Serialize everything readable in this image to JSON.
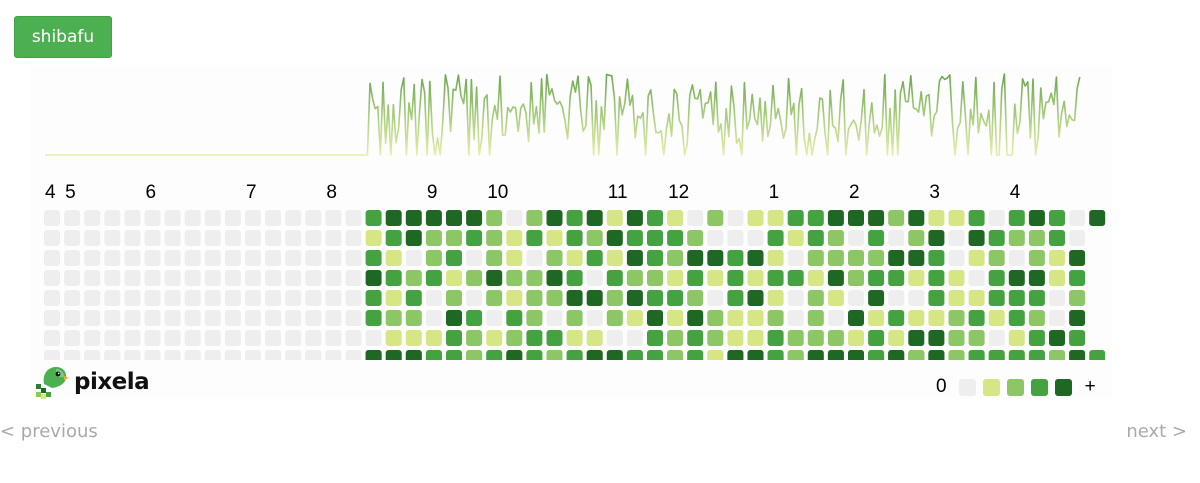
{
  "graph_button": {
    "label": "shibafu"
  },
  "months": [
    {
      "label": "4",
      "week": 0
    },
    {
      "label": "5",
      "week": 1
    },
    {
      "label": "6",
      "week": 5
    },
    {
      "label": "7",
      "week": 10
    },
    {
      "label": "8",
      "week": 14
    },
    {
      "label": "9",
      "week": 19
    },
    {
      "label": "10",
      "week": 22
    },
    {
      "label": "11",
      "week": 28
    },
    {
      "label": "12",
      "week": 31
    },
    {
      "label": "1",
      "week": 36
    },
    {
      "label": "2",
      "week": 40
    },
    {
      "label": "3",
      "week": 44
    },
    {
      "label": "4",
      "week": 48
    }
  ],
  "heatmap": {
    "weeks": 53,
    "days": 7,
    "active_start_week": 16,
    "last_week_days": 1,
    "colors": [
      "#eeeeee",
      "#d6e685",
      "#8cc665",
      "#44a340",
      "#1e6823"
    ]
  },
  "sparkline_colors": {
    "top": "#6aa84f",
    "bottom": "#e2efa8"
  },
  "logo": {
    "name": "pixela",
    "icon": "pixela-bird-icon"
  },
  "legend": {
    "low": "0",
    "high": "+",
    "colors": [
      "#eeeeee",
      "#d6e685",
      "#8cc665",
      "#44a340",
      "#1e6823"
    ]
  },
  "nav": {
    "previous": "< previous",
    "next": "next >"
  }
}
